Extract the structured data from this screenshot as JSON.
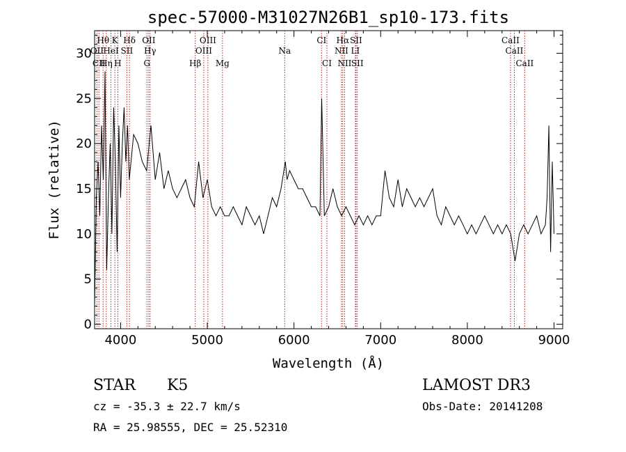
{
  "chart_data": {
    "type": "line",
    "title": "spec-57000-M31027N26B1_sp10-173.fits",
    "xlabel": "Wavelength (Å)",
    "ylabel": "Flux (relative)",
    "xlim": [
      3700,
      9100
    ],
    "ylim": [
      -0.5,
      32.5
    ],
    "xticks": [
      4000,
      5000,
      6000,
      7000,
      8000,
      9000
    ],
    "yticks": [
      0,
      5,
      10,
      15,
      20,
      25,
      30
    ],
    "grid": false,
    "series": [
      {
        "x": [
          3700,
          3720,
          3740,
          3760,
          3780,
          3800,
          3820,
          3840,
          3860,
          3880,
          3900,
          3920,
          3940,
          3960,
          3980,
          4000,
          4020,
          4040,
          4060,
          4080,
          4100,
          4150,
          4200,
          4250,
          4300,
          4350,
          4400,
          4450,
          4500,
          4550,
          4600,
          4650,
          4700,
          4750,
          4800,
          4850,
          4900,
          4950,
          5000,
          5050,
          5100,
          5150,
          5200,
          5250,
          5300,
          5350,
          5400,
          5450,
          5500,
          5550,
          5600,
          5650,
          5700,
          5750,
          5800,
          5850,
          5900,
          5920,
          5950,
          6000,
          6050,
          6100,
          6150,
          6200,
          6250,
          6300,
          6320,
          6350,
          6400,
          6450,
          6500,
          6550,
          6600,
          6650,
          6700,
          6750,
          6800,
          6850,
          6900,
          6950,
          7000,
          7050,
          7100,
          7150,
          7200,
          7250,
          7300,
          7350,
          7400,
          7450,
          7500,
          7550,
          7600,
          7650,
          7700,
          7750,
          7800,
          7850,
          7900,
          7950,
          8000,
          8050,
          8100,
          8150,
          8200,
          8250,
          8300,
          8350,
          8400,
          8450,
          8500,
          8550,
          8600,
          8650,
          8700,
          8750,
          8800,
          8850,
          8900,
          8920,
          8940,
          8960,
          8980,
          9000
        ],
        "y": [
          2,
          14,
          18,
          12,
          22,
          16,
          28,
          6,
          14,
          20,
          10,
          24,
          18,
          8,
          22,
          14,
          20,
          24,
          18,
          22,
          16,
          21,
          20,
          18,
          17,
          22,
          16,
          19,
          15,
          17,
          15,
          14,
          15,
          16,
          14,
          13,
          18,
          14,
          16,
          13,
          12,
          13,
          12,
          12,
          13,
          12,
          11,
          13,
          12,
          11,
          12,
          10,
          12,
          14,
          13,
          15,
          18,
          16,
          17,
          16,
          15,
          15,
          14,
          13,
          13,
          12,
          25,
          12,
          13,
          15,
          13,
          12,
          13,
          12,
          11,
          12,
          11,
          12,
          11,
          12,
          12,
          17,
          14,
          13,
          16,
          13,
          15,
          14,
          13,
          14,
          13,
          14,
          15,
          12,
          11,
          13,
          12,
          11,
          12,
          11,
          10,
          11,
          10,
          11,
          12,
          11,
          10,
          11,
          10,
          11,
          10,
          7,
          10,
          11,
          10,
          11,
          12,
          10,
          11,
          14,
          22,
          8,
          18,
          10
        ]
      }
    ],
    "line_marks": [
      {
        "label": "Hθ",
        "x": 3798,
        "row": 1
      },
      {
        "label": "K",
        "x": 3934,
        "row": 1
      },
      {
        "label": "Hδ",
        "x": 4102,
        "row": 1
      },
      {
        "label": "OII",
        "x": 4325,
        "row": 1
      },
      {
        "label": "OIII",
        "x": 5007,
        "row": 1
      },
      {
        "label": "CI",
        "x": 6318,
        "row": 1
      },
      {
        "label": "Hα",
        "x": 6563,
        "row": 1
      },
      {
        "label": "SII",
        "x": 6716,
        "row": 1
      },
      {
        "label": "CaII",
        "x": 8498,
        "row": 1
      },
      {
        "label": "OII",
        "x": 3727,
        "row": 2
      },
      {
        "label": "HeI",
        "x": 3889,
        "row": 2
      },
      {
        "label": "SII",
        "x": 4072,
        "row": 2
      },
      {
        "label": "Hγ",
        "x": 4340,
        "row": 2
      },
      {
        "label": "OIII",
        "x": 4959,
        "row": 2
      },
      {
        "label": "Na",
        "x": 5893,
        "row": 2
      },
      {
        "label": "NII",
        "x": 6548,
        "row": 2
      },
      {
        "label": "LI",
        "x": 6708,
        "row": 2
      },
      {
        "label": "CaII",
        "x": 8542,
        "row": 2
      },
      {
        "label": "CII",
        "x": 3750,
        "row": 3
      },
      {
        "label": "Hη",
        "x": 3835,
        "row": 3
      },
      {
        "label": "H",
        "x": 3968,
        "row": 3
      },
      {
        "label": "G",
        "x": 4304,
        "row": 3
      },
      {
        "label": "Hβ",
        "x": 4861,
        "row": 3
      },
      {
        "label": "Mg",
        "x": 5175,
        "row": 3
      },
      {
        "label": "CI",
        "x": 6380,
        "row": 3
      },
      {
        "label": "NII",
        "x": 6584,
        "row": 3
      },
      {
        "label": "SII",
        "x": 6731,
        "row": 3
      },
      {
        "label": "CaII",
        "x": 8662,
        "row": 3
      }
    ]
  },
  "footer": {
    "class": "STAR",
    "subclass": "K5",
    "survey": "LAMOST DR3",
    "cz": "cz = -35.3 ± 22.7 km/s",
    "obs_date": "Obs-Date: 20141208",
    "coords": "RA =  25.98555, DEC =  25.52310"
  }
}
